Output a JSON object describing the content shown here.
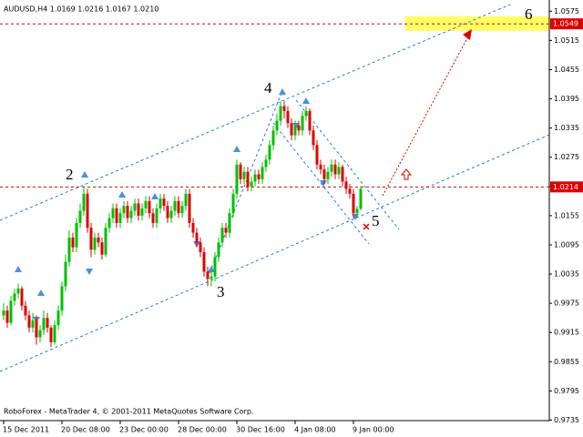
{
  "chart_data": {
    "type": "candlestick",
    "title": "AUDUSD,H4  1.0169 1.0216 1.0167 1.0210",
    "footer": "RoboForex - MetaTrader 4, © 2001-2011 MetaQuotes Software Corp.",
    "wave_labels": [
      "2",
      "3",
      "4",
      "5",
      "6"
    ],
    "categories": [
      "15 Dec 2011",
      null,
      null,
      null,
      null,
      null,
      null,
      null,
      null,
      null,
      null,
      null,
      null,
      null,
      null,
      null,
      "20 Dec 08:00",
      null,
      null,
      null,
      null,
      null,
      null,
      null,
      null,
      null,
      null,
      null,
      null,
      null,
      null,
      null,
      "23 Dec 00:00",
      null,
      null,
      null,
      null,
      null,
      null,
      null,
      null,
      null,
      null,
      null,
      null,
      null,
      null,
      null,
      "28 Dec 00:00",
      null,
      null,
      null,
      null,
      null,
      null,
      null,
      null,
      null,
      null,
      null,
      null,
      null,
      null,
      null,
      "30 Dec 16:00",
      null,
      null,
      null,
      null,
      null,
      null,
      null,
      null,
      null,
      null,
      null,
      null,
      null,
      null,
      null,
      "4 Jan 08:00",
      null,
      null,
      null,
      null,
      null,
      null,
      null,
      null,
      null,
      null,
      null,
      null,
      null,
      null,
      null,
      "9 Jan 00:00",
      null,
      null
    ],
    "open": [
      0.995,
      0.996,
      0.9935,
      0.998,
      0.9995,
      1.0005,
      0.997,
      0.995,
      0.9925,
      0.994,
      0.9905,
      0.992,
      0.9945,
      0.9925,
      0.9895,
      0.993,
      0.996,
      1.001,
      1.006,
      1.011,
      1.009,
      1.014,
      1.0165,
      1.02,
      1.013,
      1.0085,
      1.011,
      1.01,
      1.0075,
      1.013,
      1.015,
      1.017,
      1.014,
      1.016,
      1.0175,
      1.015,
      1.0165,
      1.018,
      1.0155,
      1.017,
      1.0185,
      1.016,
      1.014,
      1.017,
      1.019,
      1.0175,
      1.015,
      1.0165,
      1.0185,
      1.016,
      1.0175,
      1.02,
      1.014,
      1.012,
      1.01,
      1.008,
      1.004,
      1.0025,
      1.003,
      1.007,
      1.01,
      1.013,
      1.012,
      1.016,
      1.02,
      1.026,
      1.023,
      1.0245,
      1.0215,
      1.0225,
      1.024,
      1.023,
      1.0255,
      1.027,
      1.03,
      1.033,
      1.035,
      1.038,
      1.037,
      1.0345,
      1.032,
      1.034,
      1.033,
      1.036,
      1.037,
      1.033,
      1.03,
      1.026,
      1.025,
      1.023,
      1.0245,
      1.026,
      1.024,
      1.0255,
      1.0225,
      1.021,
      1.02,
      1.016,
      1.0169
    ],
    "high": [
      0.9975,
      0.997,
      0.999,
      1.0005,
      1.0015,
      1.001,
      0.998,
      0.996,
      0.9955,
      0.995,
      0.993,
      0.996,
      0.9955,
      0.993,
      0.994,
      0.997,
      1.002,
      1.0075,
      1.0125,
      1.012,
      1.015,
      1.018,
      1.0215,
      1.021,
      1.014,
      1.012,
      1.012,
      1.011,
      1.014,
      1.016,
      1.018,
      1.018,
      1.017,
      1.0185,
      1.0185,
      1.0175,
      1.019,
      1.019,
      1.018,
      1.0195,
      1.0195,
      1.017,
      1.018,
      1.02,
      1.02,
      1.0185,
      1.0175,
      1.0195,
      1.0195,
      1.0185,
      1.021,
      1.021,
      1.015,
      1.013,
      1.011,
      1.009,
      1.005,
      1.004,
      1.008,
      1.011,
      1.014,
      1.014,
      1.017,
      1.021,
      1.027,
      1.0265,
      1.0255,
      1.0255,
      1.0235,
      1.025,
      1.025,
      1.0265,
      1.028,
      1.031,
      1.034,
      1.0365,
      1.039,
      1.039,
      1.038,
      1.0355,
      1.035,
      1.035,
      1.037,
      1.038,
      1.0375,
      1.034,
      1.031,
      1.027,
      1.026,
      1.0255,
      1.027,
      1.027,
      1.0265,
      1.026,
      1.0235,
      1.022,
      1.021,
      1.0175,
      1.0216
    ],
    "low": [
      0.994,
      0.9925,
      0.993,
      0.997,
      0.9985,
      0.996,
      0.994,
      0.9915,
      0.9915,
      0.989,
      0.9895,
      0.991,
      0.9915,
      0.9885,
      0.989,
      0.992,
      0.995,
      1.0,
      1.005,
      1.008,
      1.008,
      1.013,
      1.0155,
      1.012,
      1.007,
      1.0075,
      1.009,
      1.0065,
      1.007,
      1.012,
      1.014,
      1.013,
      1.013,
      1.015,
      1.014,
      1.014,
      1.0155,
      1.0145,
      1.0145,
      1.016,
      1.015,
      1.013,
      1.013,
      1.016,
      1.0165,
      1.014,
      1.014,
      1.0155,
      1.015,
      1.015,
      1.0165,
      1.013,
      1.011,
      1.009,
      1.007,
      1.003,
      1.001,
      1.001,
      1.002,
      1.006,
      1.009,
      1.011,
      1.011,
      1.015,
      1.019,
      1.022,
      1.022,
      1.0205,
      1.0205,
      1.0215,
      1.022,
      1.022,
      1.0245,
      1.026,
      1.029,
      1.032,
      1.034,
      1.0355,
      1.0335,
      1.031,
      1.031,
      1.032,
      1.032,
      1.035,
      1.032,
      1.029,
      1.025,
      1.024,
      1.022,
      1.022,
      1.0235,
      1.023,
      1.023,
      1.0215,
      1.02,
      1.019,
      1.015,
      1.015,
      1.0167
    ],
    "close": [
      0.996,
      0.9935,
      0.998,
      0.9995,
      1.0005,
      0.997,
      0.995,
      0.9925,
      0.994,
      0.9905,
      0.992,
      0.9945,
      0.9925,
      0.9895,
      0.993,
      0.996,
      1.001,
      1.006,
      1.011,
      1.009,
      1.014,
      1.0165,
      1.02,
      1.013,
      1.0085,
      1.011,
      1.01,
      1.0075,
      1.013,
      1.015,
      1.017,
      1.014,
      1.016,
      1.0175,
      1.015,
      1.0165,
      1.018,
      1.0155,
      1.017,
      1.0185,
      1.016,
      1.014,
      1.017,
      1.019,
      1.0175,
      1.015,
      1.0165,
      1.0185,
      1.016,
      1.0175,
      1.02,
      1.014,
      1.012,
      1.01,
      1.008,
      1.004,
      1.0025,
      1.003,
      1.007,
      1.01,
      1.013,
      1.012,
      1.016,
      1.02,
      1.026,
      1.023,
      1.0245,
      1.0215,
      1.0225,
      1.024,
      1.023,
      1.0255,
      1.027,
      1.03,
      1.033,
      1.035,
      1.038,
      1.037,
      1.0345,
      1.032,
      1.034,
      1.033,
      1.036,
      1.037,
      1.033,
      1.03,
      1.026,
      1.025,
      1.023,
      1.0245,
      1.026,
      1.024,
      1.0255,
      1.0225,
      1.021,
      1.02,
      1.016,
      1.0169,
      1.021
    ],
    "up_color": "#00c000",
    "down_color": "#e00000",
    "hlines": [
      1.0549,
      1.0214
    ],
    "hline_color": "#e00000",
    "ylim": [
      0.9734,
      1.0598
    ],
    "yticks": [
      1.0575,
      1.0515,
      1.0455,
      1.0395,
      1.0335,
      1.0275,
      1.0215,
      1.0155,
      1.0095,
      1.0035,
      0.9975,
      0.9915,
      0.9855,
      0.9795,
      0.9735
    ]
  }
}
